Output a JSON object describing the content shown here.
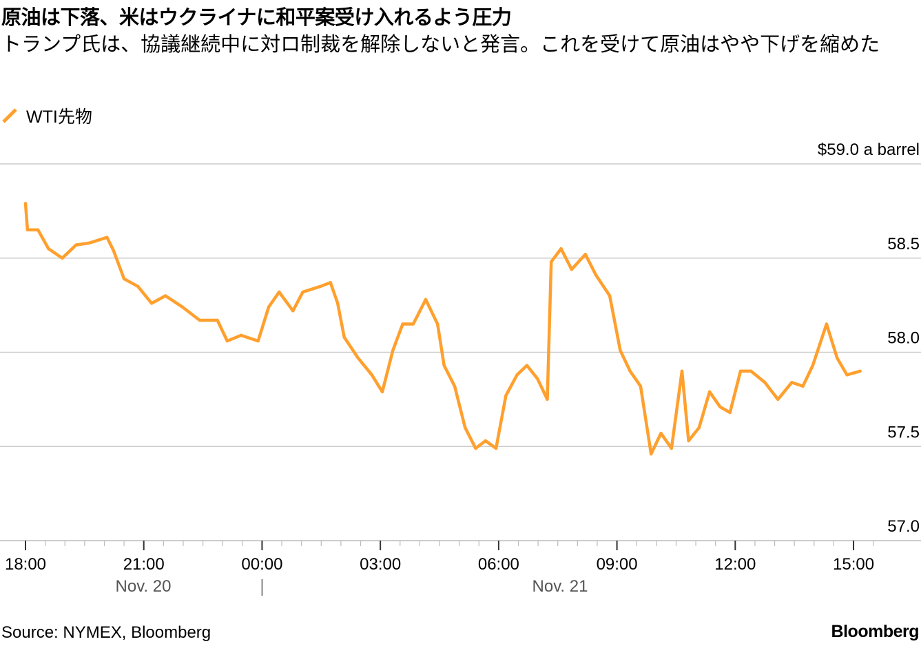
{
  "title": "原油は下落、米はウクライナに和平案受け入れるよう圧力",
  "subtitle": "トランプ氏は、協議継続中に対ロ制裁を解除しないと発言。これを受けて原油はやや下げを縮めた",
  "source": "Source: NYMEX, Bloomberg",
  "brand": "Bloomberg",
  "chart_data": {
    "type": "line",
    "title": "原油は下落、米はウクライナに和平案受け入れるよう圧力",
    "ylabel": "",
    "xlabel": "",
    "ylim": [
      57.0,
      59.0
    ],
    "y_unit_label": "$59.0 a barrel",
    "y_ticks": [
      {
        "value": 59.0,
        "label": "$59.0 a barrel"
      },
      {
        "value": 58.5,
        "label": "58.5"
      },
      {
        "value": 58.0,
        "label": "58.0"
      },
      {
        "value": 57.5,
        "label": "57.5"
      },
      {
        "value": 57.0,
        "label": "57.0"
      }
    ],
    "x_ticks": [
      "18:00",
      "21:00",
      "00:00",
      "03:00",
      "06:00",
      "09:00",
      "12:00",
      "15:00"
    ],
    "date_labels": [
      "Nov. 20",
      "Nov. 21"
    ],
    "grid": true,
    "legend_placement": "top-left",
    "color": "#FFA02E",
    "series": [
      {
        "name": "WTI先物",
        "x": [
          "18:00",
          "18:03",
          "18:19",
          "18:35",
          "18:56",
          "19:17",
          "19:37",
          "20:04",
          "20:14",
          "20:30",
          "20:51",
          "21:12",
          "21:33",
          "21:59",
          "22:25",
          "22:52",
          "23:07",
          "23:28",
          "23:54",
          "00:10",
          "00:26",
          "00:47",
          "01:02",
          "01:29",
          "01:44",
          "01:55",
          "02:05",
          "02:26",
          "02:47",
          "03:03",
          "03:19",
          "03:34",
          "03:50",
          "04:09",
          "04:27",
          "04:37",
          "04:53",
          "05:09",
          "05:25",
          "05:40",
          "05:56",
          "06:11",
          "06:28",
          "06:43",
          "06:59",
          "07:14",
          "07:20",
          "07:35",
          "07:51",
          "08:12",
          "08:28",
          "08:49",
          "09:05",
          "09:20",
          "09:36",
          "09:52",
          "10:07",
          "10:23",
          "10:39",
          "10:49",
          "11:05",
          "11:21",
          "11:37",
          "11:52",
          "12:08",
          "12:24",
          "12:45",
          "13:05",
          "13:26",
          "13:43",
          "13:58",
          "14:19",
          "14:35",
          "14:50",
          "15:10"
        ],
        "values": [
          58.79,
          58.65,
          58.65,
          58.55,
          58.5,
          58.57,
          58.58,
          58.61,
          58.54,
          58.39,
          58.35,
          58.26,
          58.3,
          58.24,
          58.17,
          58.17,
          58.06,
          58.09,
          58.06,
          58.24,
          58.32,
          58.22,
          58.32,
          58.35,
          58.37,
          58.26,
          58.08,
          57.97,
          57.88,
          57.79,
          58.01,
          58.15,
          58.15,
          58.28,
          58.15,
          57.93,
          57.82,
          57.6,
          57.49,
          57.53,
          57.49,
          57.77,
          57.88,
          57.93,
          57.86,
          57.75,
          58.48,
          58.55,
          58.44,
          58.52,
          58.41,
          58.3,
          58.01,
          57.9,
          57.82,
          57.46,
          57.57,
          57.49,
          57.9,
          57.53,
          57.6,
          57.79,
          57.71,
          57.68,
          57.9,
          57.9,
          57.84,
          57.75,
          57.84,
          57.82,
          57.93,
          58.15,
          57.97,
          57.88,
          57.9
        ]
      }
    ]
  }
}
